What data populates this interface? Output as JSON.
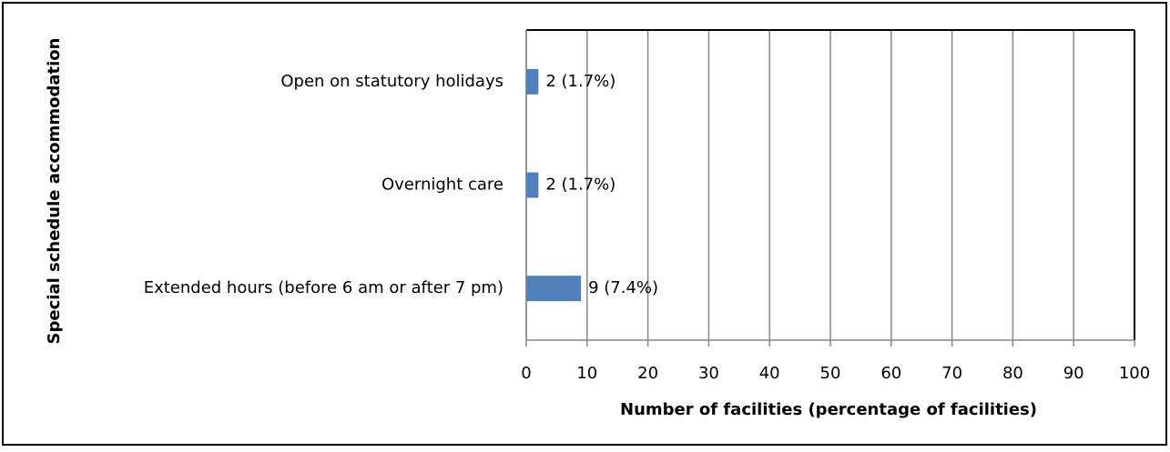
{
  "chart_data": {
    "type": "bar",
    "orientation": "horizontal",
    "categories": [
      "Open on statutory holidays",
      "Overnight care",
      "Extended hours (before 6 am or after 7 pm)"
    ],
    "values": [
      2,
      2,
      9
    ],
    "value_labels": [
      "2 (1.7%)",
      "2 (1.7%)",
      "9 (7.4%)"
    ],
    "color": "#4f81bd",
    "xlim": [
      0,
      100
    ],
    "xticks": [
      0,
      10,
      20,
      30,
      40,
      50,
      60,
      70,
      80,
      90,
      100
    ],
    "grid": true,
    "xlabel": "Number of facilities (percentage of facilities)",
    "ylabel": "Special schedule accommodation"
  }
}
